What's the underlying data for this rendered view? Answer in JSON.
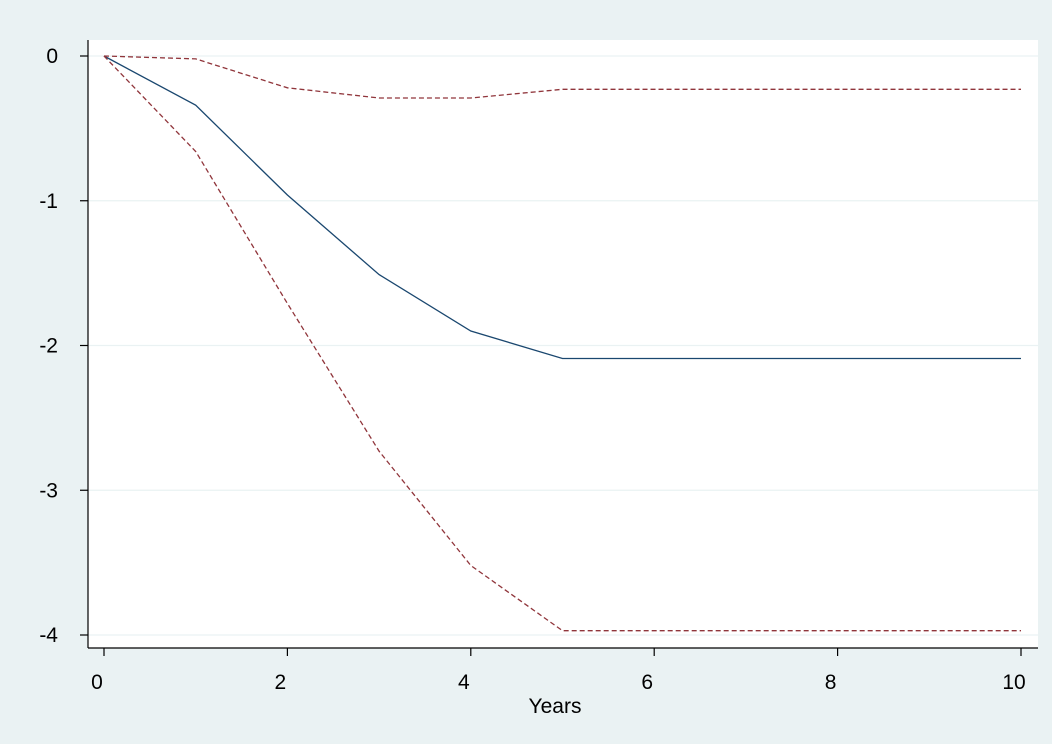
{
  "chart_data": {
    "type": "line",
    "xlabel": "Years",
    "ylabel": "",
    "xlim": [
      0,
      10
    ],
    "ylim": [
      -4,
      0
    ],
    "x_ticks": [
      0,
      2,
      4,
      6,
      8,
      10
    ],
    "y_ticks": [
      0,
      -1,
      -2,
      -3,
      -4
    ],
    "x_tick_labels": [
      "0",
      "2",
      "4",
      "6",
      "8",
      "10"
    ],
    "y_tick_labels": [
      "0",
      "-1",
      "-2",
      "-3",
      "-4"
    ],
    "grid": true,
    "x": [
      0,
      1,
      2,
      3,
      4,
      5,
      6,
      7,
      8,
      9,
      10
    ],
    "series": [
      {
        "values": [
          0,
          -0.34,
          -0.96,
          -1.51,
          -1.9,
          -2.09,
          -2.09,
          -2.09,
          -2.09,
          -2.09,
          -2.09
        ],
        "color": "#1a476f",
        "style": "solid"
      },
      {
        "values": [
          0,
          -0.02,
          -0.22,
          -0.29,
          -0.29,
          -0.23,
          -0.23,
          -0.23,
          -0.23,
          -0.23,
          -0.23
        ],
        "color": "#90353b",
        "style": "dashed"
      },
      {
        "values": [
          0,
          -0.66,
          -1.71,
          -2.73,
          -3.52,
          -3.97,
          -3.97,
          -3.97,
          -3.97,
          -3.97,
          -3.97
        ],
        "color": "#90353b",
        "style": "dashed"
      }
    ],
    "colors": {
      "background": "#eaf2f3",
      "plot_area": "#ffffff",
      "grid": "#eaf2f3"
    }
  }
}
